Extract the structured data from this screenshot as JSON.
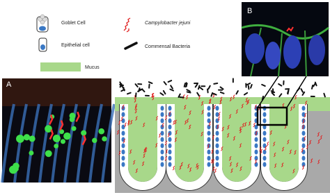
{
  "legend": {
    "goblet_cell": "Goblet Cell",
    "campylobacter": "Campylobacter jejuni",
    "epithelial_cell": "Epithelial cell",
    "commensal": "Commensal Bacteria",
    "mucus": "Mucus"
  },
  "panels": {
    "a": "A",
    "b": "B"
  }
}
